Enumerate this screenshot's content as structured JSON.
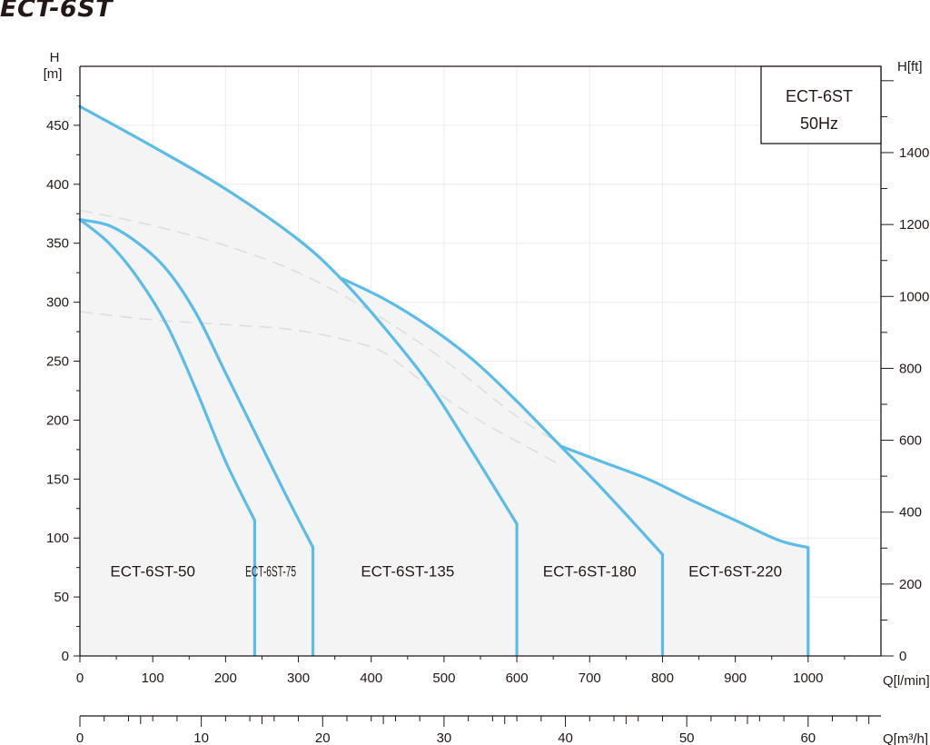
{
  "title": "ECT-6ST",
  "legend": {
    "line1": "ECT-6ST",
    "line2": "50Hz"
  },
  "colors": {
    "curve": "#5bbce8",
    "envelope_fill": "#f4f4f4",
    "efficiency": "#dedede",
    "axis": "#231815",
    "grid": "#ececec"
  },
  "chart_data": {
    "type": "line",
    "title": "ECT-6ST",
    "xlabel": "Q[l/min]",
    "x2label": "Q[m³/h]",
    "ylabel": "H\n[m]",
    "y2label": "H[ft]",
    "xlim": [
      0,
      1100
    ],
    "x2lim": [
      0,
      66
    ],
    "ylim": [
      0,
      500
    ],
    "y2lim": [
      0,
      1640
    ],
    "x_ticks": [
      0,
      100,
      200,
      300,
      400,
      500,
      600,
      700,
      800,
      900,
      1000
    ],
    "x2_ticks": [
      0,
      10,
      20,
      30,
      40,
      50,
      60
    ],
    "y_ticks": [
      0,
      50,
      100,
      150,
      200,
      250,
      300,
      350,
      400,
      450
    ],
    "y2_ticks": [
      0,
      200,
      400,
      600,
      800,
      1000,
      1200,
      1400
    ],
    "grid": true,
    "legend_position": "top-right",
    "series": [
      {
        "name": "ECT-6ST-50",
        "x": [
          0,
          40,
          80,
          120,
          160,
          200,
          240
        ],
        "y": [
          370,
          350,
          320,
          280,
          225,
          165,
          115
        ],
        "label_at": [
          100,
          72
        ]
      },
      {
        "name": "ECT-6ST-75",
        "x": [
          0,
          40,
          80,
          120,
          160,
          200,
          240,
          280,
          320
        ],
        "y": [
          370,
          365,
          350,
          327,
          290,
          240,
          190,
          140,
          92
        ],
        "label_at": [
          262,
          72
        ]
      },
      {
        "name": "ECT-6ST-135",
        "x": [
          0,
          100,
          200,
          300,
          360,
          420,
          480,
          540,
          600
        ],
        "y": [
          466,
          432,
          396,
          353,
          319,
          277,
          230,
          172,
          112
        ],
        "label_at": [
          450,
          72
        ]
      },
      {
        "name": "ECT-6ST-180",
        "x": [
          360,
          420,
          480,
          540,
          600,
          660,
          700,
          750,
          800
        ],
        "y": [
          320,
          302,
          279,
          251,
          216,
          178,
          153,
          120,
          86
        ],
        "label_at": [
          700,
          72
        ]
      },
      {
        "name": "ECT-6ST-220",
        "x": [
          660,
          720,
          780,
          840,
          900,
          960,
          1000
        ],
        "y": [
          178,
          164,
          150,
          132,
          115,
          98,
          92
        ],
        "label_at": [
          900,
          72
        ]
      }
    ],
    "efficiency_lines": [
      {
        "x": [
          0,
          100,
          200,
          300,
          400,
          500,
          600,
          660
        ],
        "y": [
          378,
          365,
          348,
          325,
          292,
          251,
          203,
          180
        ]
      },
      {
        "x": [
          0,
          100,
          200,
          300,
          400,
          440,
          480,
          540,
          600,
          660
        ],
        "y": [
          292,
          285,
          281,
          276,
          262,
          247,
          228,
          203,
          182,
          162
        ]
      }
    ]
  }
}
